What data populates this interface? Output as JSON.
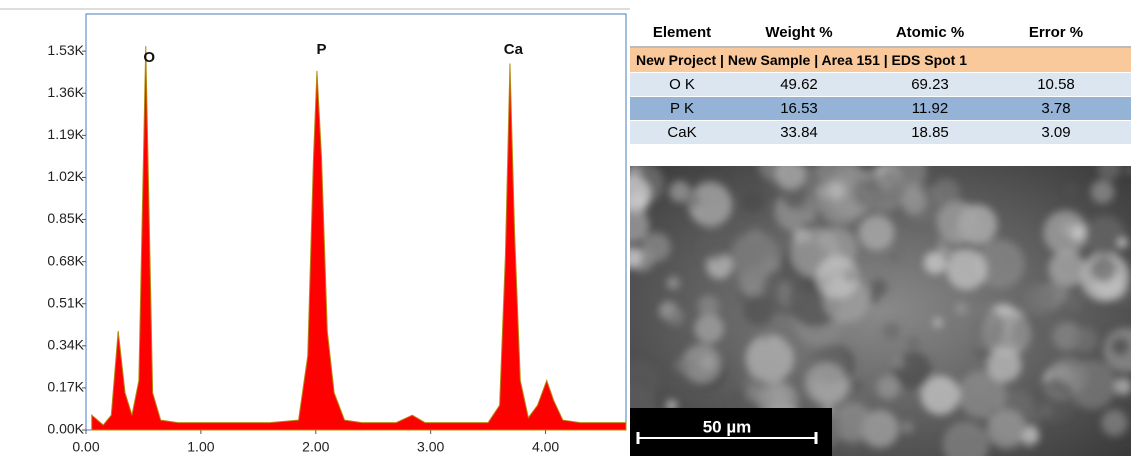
{
  "chart_data": {
    "type": "area",
    "x": [
      0.05,
      0.15,
      0.22,
      0.28,
      0.34,
      0.4,
      0.46,
      0.52,
      0.58,
      0.65,
      0.8,
      1.0,
      1.3,
      1.6,
      1.85,
      1.93,
      1.98,
      2.01,
      2.05,
      2.1,
      2.16,
      2.25,
      2.4,
      2.7,
      2.84,
      2.95,
      3.2,
      3.5,
      3.6,
      3.65,
      3.69,
      3.73,
      3.78,
      3.85,
      3.93,
      4.01,
      4.07,
      4.15,
      4.3,
      4.5,
      4.7
    ],
    "series": [
      {
        "color": "#ff0000",
        "values": [
          60,
          20,
          60,
          400,
          150,
          60,
          200,
          1550,
          150,
          40,
          30,
          30,
          30,
          30,
          40,
          300,
          1100,
          1450,
          1100,
          400,
          150,
          40,
          30,
          30,
          60,
          30,
          30,
          30,
          100,
          700,
          1480,
          800,
          200,
          50,
          100,
          200,
          120,
          40,
          30,
          30,
          30
        ]
      }
    ],
    "annotations": [
      {
        "text": "O",
        "x": 0.55
      },
      {
        "text": "P",
        "x": 2.05
      },
      {
        "text": "Ca",
        "x": 3.72
      }
    ],
    "xlim": [
      0,
      4.7
    ],
    "xticks": [
      {
        "value": 0,
        "label": "0.00"
      },
      {
        "value": 1,
        "label": "1.00"
      },
      {
        "value": 2,
        "label": "2.00"
      },
      {
        "value": 3,
        "label": "3.00"
      },
      {
        "value": 4,
        "label": "4.00"
      }
    ],
    "ylim": [
      0,
      1680
    ],
    "yticks": [
      {
        "value": 0,
        "label": "0.00K"
      },
      {
        "value": 170,
        "label": "0.17K"
      },
      {
        "value": 340,
        "label": "0.34K"
      },
      {
        "value": 510,
        "label": "0.51K"
      },
      {
        "value": 680,
        "label": "0.68K"
      },
      {
        "value": 850,
        "label": "0.85K"
      },
      {
        "value": 1020,
        "label": "1.02K"
      },
      {
        "value": 1190,
        "label": "1.19K"
      },
      {
        "value": 1360,
        "label": "1.36K"
      },
      {
        "value": 1530,
        "label": "1.53K"
      }
    ]
  },
  "table": {
    "columns": [
      "Element",
      "Weight %",
      "Atomic %",
      "Error %"
    ],
    "title": "New Project | New Sample | Area 151 | EDS Spot 1",
    "rows": [
      [
        "O K",
        "49.62",
        "69.23",
        "10.58"
      ],
      [
        "P K",
        "16.53",
        "11.92",
        "3.78"
      ],
      [
        "CaK",
        "33.84",
        "18.85",
        "3.09"
      ]
    ]
  },
  "image": {
    "scale_bar": "50 µm"
  }
}
